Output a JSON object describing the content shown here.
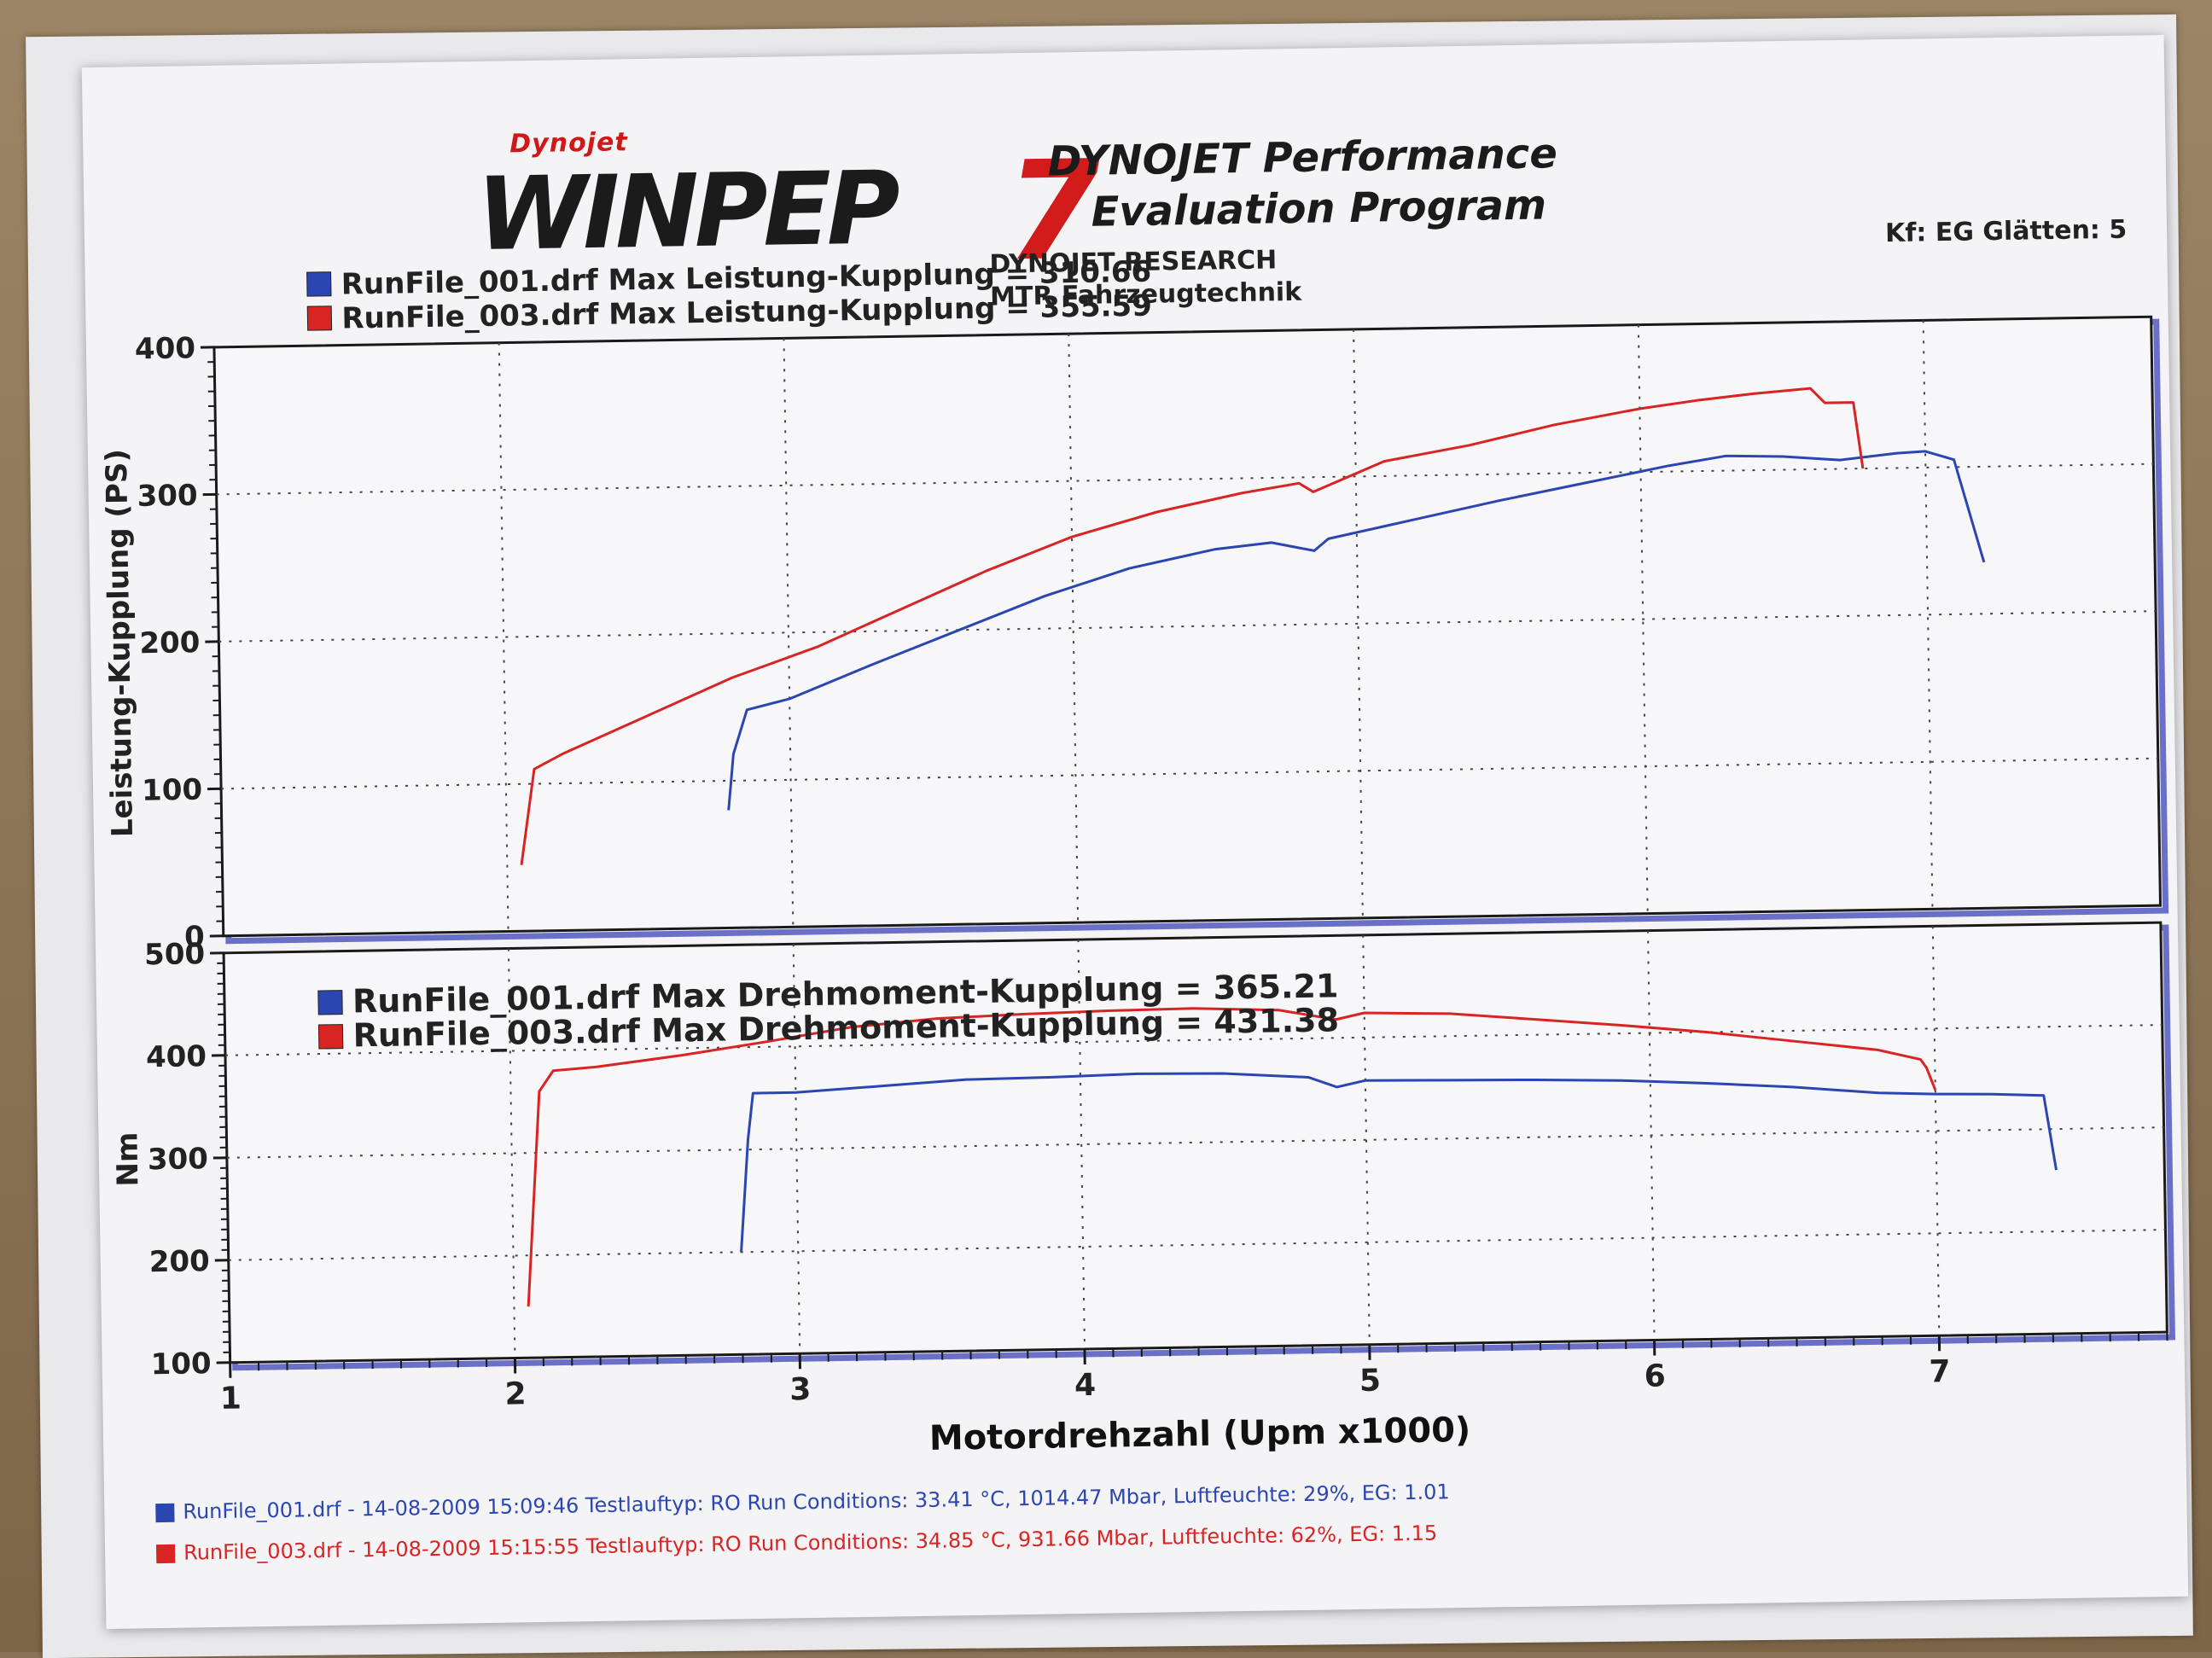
{
  "header": {
    "logo_small": "Dynojet",
    "logo_main": "WINPEP",
    "logo_number": "7",
    "brand_line1": "DYNOJET Performance",
    "brand_line2": "Evaluation Program",
    "research": "DYNOJET RESEARCH",
    "company": "MTR Fahrzeugtechnik",
    "settings": "Kf: EG  Glätten: 5"
  },
  "colors": {
    "run1": "#2b46b0",
    "run3": "#d92424",
    "grid": "#444444",
    "axis": "#1a1a1a"
  },
  "chart_data": [
    {
      "type": "line",
      "ylabel": "Leistung-Kupplung (PS)",
      "xlim": [
        1,
        7.8
      ],
      "ylim": [
        0,
        400
      ],
      "yticks": [
        "0",
        "100",
        "200",
        "300",
        "400"
      ],
      "grid": true,
      "legend": [
        {
          "text": "RunFile_001.drf Max Leistung-Kupplung = 310.66",
          "color": "#2b46b0"
        },
        {
          "text": "RunFile_003.drf Max Leistung-Kupplung = 355.59",
          "color": "#d92424"
        }
      ],
      "series": [
        {
          "name": "RunFile_001.drf",
          "color": "#2b46b0",
          "x": [
            2.78,
            2.8,
            2.85,
            3.0,
            3.3,
            3.6,
            3.9,
            4.2,
            4.5,
            4.7,
            4.85,
            4.9,
            5.2,
            5.5,
            5.8,
            6.1,
            6.3,
            6.5,
            6.7,
            6.9,
            7.0,
            7.1,
            7.2
          ],
          "y": [
            80,
            118,
            148,
            155,
            178,
            200,
            222,
            240,
            252,
            256,
            250,
            258,
            270,
            282,
            293,
            304,
            310,
            309,
            306,
            310,
            311,
            305,
            235
          ]
        },
        {
          "name": "RunFile_003.drf",
          "color": "#d92424",
          "x": [
            2.05,
            2.1,
            2.2,
            2.5,
            2.8,
            3.1,
            3.4,
            3.7,
            4.0,
            4.3,
            4.6,
            4.8,
            4.85,
            5.1,
            5.4,
            5.7,
            6.0,
            6.2,
            6.4,
            6.6,
            6.65,
            6.75,
            6.78
          ],
          "y": [
            45,
            110,
            120,
            145,
            170,
            190,
            215,
            240,
            262,
            278,
            290,
            296,
            290,
            310,
            320,
            333,
            343,
            348,
            352,
            355,
            345,
            345,
            300
          ]
        }
      ]
    },
    {
      "type": "line",
      "xlabel": "Motordrehzahl (Upm x1000)",
      "ylabel": "Nm",
      "xlim": [
        1,
        7.8
      ],
      "ylim": [
        100,
        500
      ],
      "xticks": [
        "1",
        "2",
        "3",
        "4",
        "5",
        "6",
        "7"
      ],
      "yticks": [
        "100",
        "200",
        "300",
        "400",
        "500"
      ],
      "grid": true,
      "legend": [
        {
          "text": "RunFile_001.drf Max Drehmoment-Kupplung = 365.21",
          "color": "#2b46b0"
        },
        {
          "text": "RunFile_003.drf Max Drehmoment-Kupplung = 431.38",
          "color": "#d92424"
        }
      ],
      "series": [
        {
          "name": "RunFile_001.drf",
          "color": "#2b46b0",
          "x": [
            2.8,
            2.83,
            2.85,
            3.0,
            3.3,
            3.6,
            3.9,
            4.2,
            4.5,
            4.8,
            4.9,
            5.0,
            5.3,
            5.6,
            5.9,
            6.2,
            6.5,
            6.8,
            7.0,
            7.2,
            7.38,
            7.42
          ],
          "y": [
            200,
            310,
            355,
            355,
            360,
            365,
            366,
            368,
            367,
            362,
            352,
            358,
            357,
            356,
            354,
            350,
            345,
            338,
            336,
            335,
            333,
            260
          ]
        },
        {
          "name": "RunFile_003.drf",
          "color": "#d92424",
          "x": [
            2.05,
            2.1,
            2.15,
            2.3,
            2.6,
            2.9,
            3.2,
            3.5,
            3.8,
            4.1,
            4.4,
            4.7,
            4.9,
            5.0,
            5.3,
            5.6,
            5.9,
            6.2,
            6.5,
            6.8,
            6.95,
            6.97,
            7.0
          ],
          "y": [
            150,
            360,
            380,
            383,
            393,
            405,
            418,
            425,
            428,
            430,
            431,
            428,
            418,
            424,
            422,
            415,
            408,
            400,
            390,
            380,
            370,
            362,
            340
          ]
        }
      ]
    }
  ],
  "footer": {
    "run1": "RunFile_001.drf - 14-08-2009 15:09:46  Testlauftyp: RO  Run Conditions: 33.41 °C, 1014.47 Mbar,  Luftfeuchte: 29%, EG: 1.01",
    "run3": "RunFile_003.drf - 14-08-2009 15:15:55  Testlauftyp: RO  Run Conditions: 34.85 °C, 931.66 Mbar,  Luftfeuchte: 62%, EG: 1.15"
  }
}
